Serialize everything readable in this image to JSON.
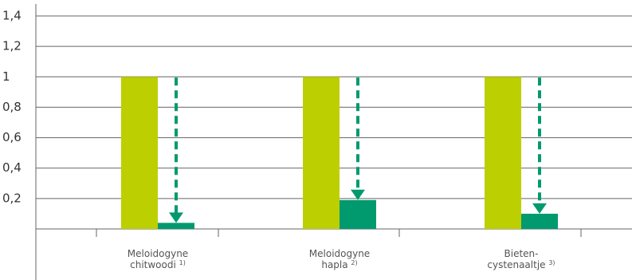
{
  "chart_data": {
    "type": "bar",
    "categories": [
      "Meloidogyne chitwoodi",
      "Meloidogyne hapla",
      "Bieten-cystenaaltje"
    ],
    "category_notes": [
      "1)",
      "2)",
      "3)"
    ],
    "series": [
      {
        "color": "#bccf00",
        "values": [
          1,
          1,
          1
        ]
      },
      {
        "color": "#009a6e",
        "values": [
          0.04,
          0.19,
          0.1
        ]
      }
    ],
    "ylim": [
      0,
      1.4
    ],
    "yticks": [
      {
        "value": 0.2,
        "label": "0,2"
      },
      {
        "value": 0.4,
        "label": "0,4"
      },
      {
        "value": 0.6,
        "label": "0,6"
      },
      {
        "value": 0.8,
        "label": "0,8"
      },
      1,
      {
        "value": 1.2,
        "label": "1,2"
      },
      {
        "value": 1.4,
        "label": "1,4"
      }
    ],
    "grid": true
  }
}
